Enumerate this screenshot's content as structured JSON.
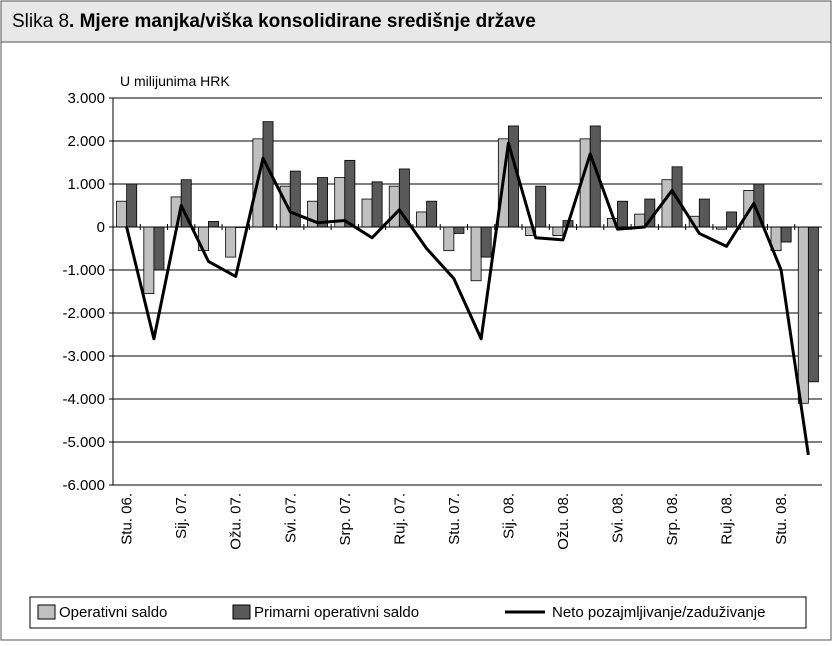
{
  "chart_data": {
    "type": "bar_line",
    "label": "Slika 8",
    "title": ". Mjere manjka/viška konsolidirane središnje države",
    "y_axis_label": "U milijunima HRK",
    "categories": [
      "Stu. 06.",
      null,
      "Sij. 07.",
      null,
      "Ožu. 07.",
      null,
      "Svi. 07.",
      null,
      "Srp. 07.",
      null,
      "Ruj. 07.",
      null,
      "Stu. 07.",
      null,
      "Sij. 08.",
      null,
      "Ožu. 08.",
      null,
      "Svi. 08.",
      null,
      "Srp. 08.",
      null,
      "Ruj. 08.",
      null,
      "Stu. 08.",
      null
    ],
    "series": [
      {
        "name": "Operativni saldo",
        "type": "bar",
        "color": "#c0c0c0",
        "values": [
          600,
          -1550,
          700,
          -550,
          -700,
          2050,
          950,
          600,
          1150,
          650,
          950,
          350,
          -550,
          -1250,
          2050,
          -200,
          -200,
          2050,
          200,
          300,
          1100,
          250,
          -50,
          850,
          -550,
          -4100
        ]
      },
      {
        "name": "Primarni operativni saldo",
        "type": "bar",
        "color": "#595959",
        "values": [
          1000,
          -1000,
          1100,
          130,
          0,
          2450,
          1300,
          1150,
          1550,
          1050,
          1350,
          600,
          -150,
          -700,
          2350,
          950,
          150,
          2350,
          600,
          650,
          1400,
          650,
          350,
          1000,
          -350,
          -3600
        ]
      },
      {
        "name": "Neto pozajmljivanje/zaduživanje",
        "type": "line",
        "color": "#000000",
        "values": [
          0,
          -2600,
          500,
          -800,
          -1150,
          1600,
          350,
          100,
          150,
          -250,
          400,
          -500,
          -1200,
          -2600,
          1950,
          -250,
          -300,
          1700,
          -50,
          0,
          850,
          -150,
          -450,
          550,
          -1000,
          -5300
        ]
      }
    ],
    "ylim": [
      -6000,
      3000
    ],
    "yticks": [
      {
        "value": -6000,
        "label": "-6.000"
      },
      {
        "value": -5000,
        "label": "-5.000"
      },
      {
        "value": -4000,
        "label": "-4.000"
      },
      {
        "value": -3000,
        "label": "-3.000"
      },
      {
        "value": -2000,
        "label": "-2.000"
      },
      {
        "value": -1000,
        "label": "-1.000"
      },
      0,
      {
        "value": 1000,
        "label": "1.000"
      },
      {
        "value": 2000,
        "label": "2.000"
      },
      {
        "value": 3000,
        "label": "3.000"
      }
    ],
    "grid": true,
    "legend": "bottom"
  }
}
